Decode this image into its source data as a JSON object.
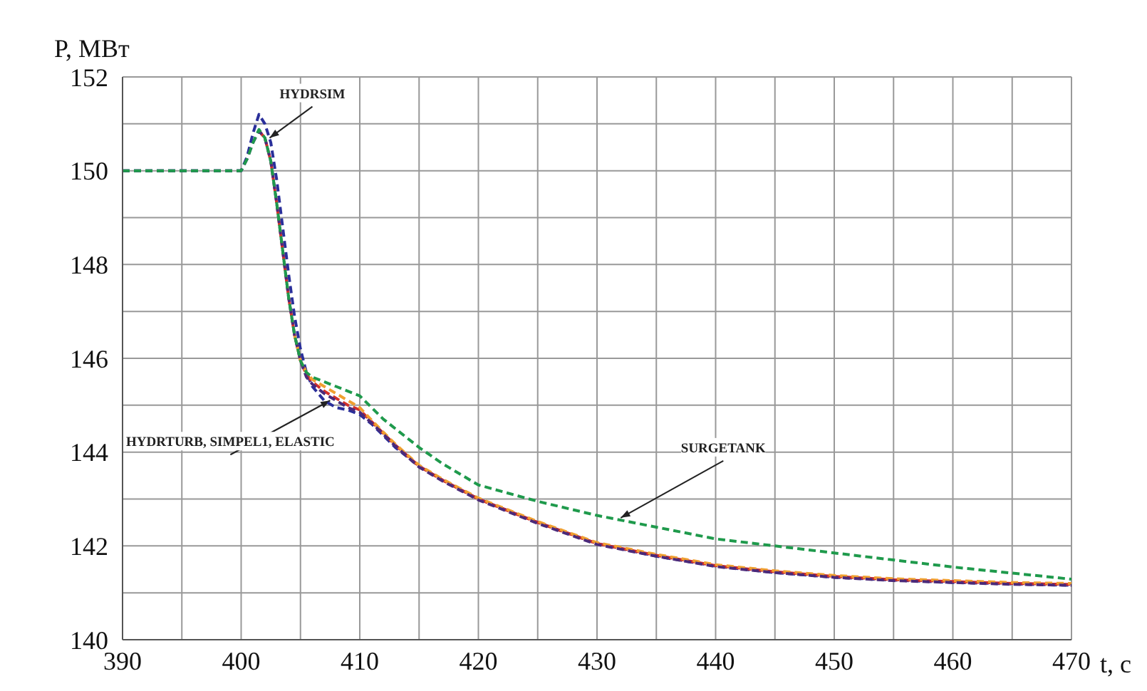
{
  "chart_data": {
    "type": "line",
    "xlabel": "t, с",
    "ylabel": "P, МВт",
    "x": [
      390,
      395,
      400,
      400.5,
      401,
      401.5,
      402,
      402.5,
      403,
      403.5,
      404,
      404.5,
      405,
      405.5,
      406,
      407,
      408,
      409,
      410,
      411,
      412,
      413,
      415,
      417,
      420,
      425,
      430,
      435,
      440,
      445,
      450,
      455,
      460,
      465,
      470
    ],
    "series": [
      {
        "color": "#2a2f9a",
        "values": [
          150,
          150,
          150,
          150.3,
          150.8,
          151.2,
          151.0,
          150.6,
          149.8,
          148.8,
          147.8,
          146.9,
          146.2,
          145.7,
          145.4,
          145.1,
          144.95,
          144.9,
          144.8,
          144.6,
          144.35,
          144.1,
          143.7,
          143.4,
          143.0,
          142.5,
          142.05,
          141.78,
          141.57,
          141.43,
          141.33,
          141.27,
          141.22,
          141.19,
          141.16
        ]
      },
      {
        "color": "#d2302a",
        "values": [
          null,
          null,
          null,
          null,
          null,
          150.85,
          150.7,
          150.2,
          149.3,
          148.3,
          147.3,
          146.5,
          145.95,
          145.65,
          145.5,
          145.3,
          145.15,
          145.0,
          144.9,
          144.65,
          144.4,
          144.15,
          143.7,
          143.4,
          143.0,
          142.5,
          142.05,
          141.8,
          141.58,
          141.45,
          141.35,
          141.28,
          141.24,
          141.2,
          141.18
        ]
      },
      {
        "color": "#f0a030",
        "values": [
          null,
          null,
          null,
          null,
          null,
          null,
          null,
          null,
          null,
          null,
          null,
          146.5,
          145.95,
          145.7,
          145.55,
          145.4,
          145.25,
          145.1,
          144.95,
          144.68,
          144.42,
          144.17,
          143.72,
          143.42,
          143.02,
          142.52,
          142.07,
          141.82,
          141.6,
          141.47,
          141.37,
          141.3,
          141.26,
          141.22,
          141.2
        ]
      },
      {
        "color": "#4b2a7a",
        "values": [
          150,
          150,
          150,
          150.25,
          150.6,
          150.85,
          150.7,
          150.2,
          149.3,
          148.3,
          147.3,
          146.5,
          145.95,
          145.6,
          145.45,
          145.25,
          145.1,
          144.95,
          144.85,
          144.62,
          144.38,
          144.13,
          143.68,
          143.38,
          142.98,
          142.48,
          142.03,
          141.78,
          141.56,
          141.43,
          141.33,
          141.26,
          141.22,
          141.18,
          141.16
        ]
      },
      {
        "color": "#1f9a4c",
        "values": [
          150,
          150,
          150,
          150.25,
          150.6,
          150.88,
          150.7,
          150.2,
          149.3,
          148.3,
          147.3,
          146.5,
          145.95,
          145.7,
          145.6,
          145.5,
          145.4,
          145.3,
          145.2,
          144.95,
          144.7,
          144.5,
          144.1,
          143.75,
          143.3,
          142.95,
          142.65,
          142.4,
          142.15,
          142.0,
          141.85,
          141.7,
          141.55,
          141.42,
          141.29
        ]
      }
    ],
    "xlim": [
      390,
      470
    ],
    "xticks": [
      390,
      {
        "value": 395,
        "label": null
      },
      400,
      {
        "value": 405,
        "label": null
      },
      410,
      {
        "value": 415,
        "label": null
      },
      420,
      {
        "value": 425,
        "label": null
      },
      430,
      {
        "value": 435,
        "label": null
      },
      440,
      {
        "value": 445,
        "label": null
      },
      450,
      {
        "value": 455,
        "label": null
      },
      460,
      {
        "value": 465,
        "label": null
      },
      470
    ],
    "ylim": [
      140,
      152
    ],
    "yticks": [
      140,
      {
        "value": 141,
        "label": null
      },
      142,
      {
        "value": 143,
        "label": null
      },
      144,
      {
        "value": 145,
        "label": null
      },
      146,
      {
        "value": 147,
        "label": null
      },
      148,
      {
        "value": 149,
        "label": null
      },
      150,
      {
        "value": 151,
        "label": null
      },
      152
    ],
    "grid": true,
    "legend": false,
    "line_style": "dashed",
    "marker": "none",
    "annotations": [
      {
        "text": "HYDRSIM",
        "x": 402.4,
        "y": 150.7
      },
      {
        "text": "HYDRTURB, SIMPEL1, ELASTIC",
        "x": 407.5,
        "y": 145.1
      },
      {
        "text": "SURGETANK",
        "x": 432,
        "y": 142.6
      }
    ]
  }
}
